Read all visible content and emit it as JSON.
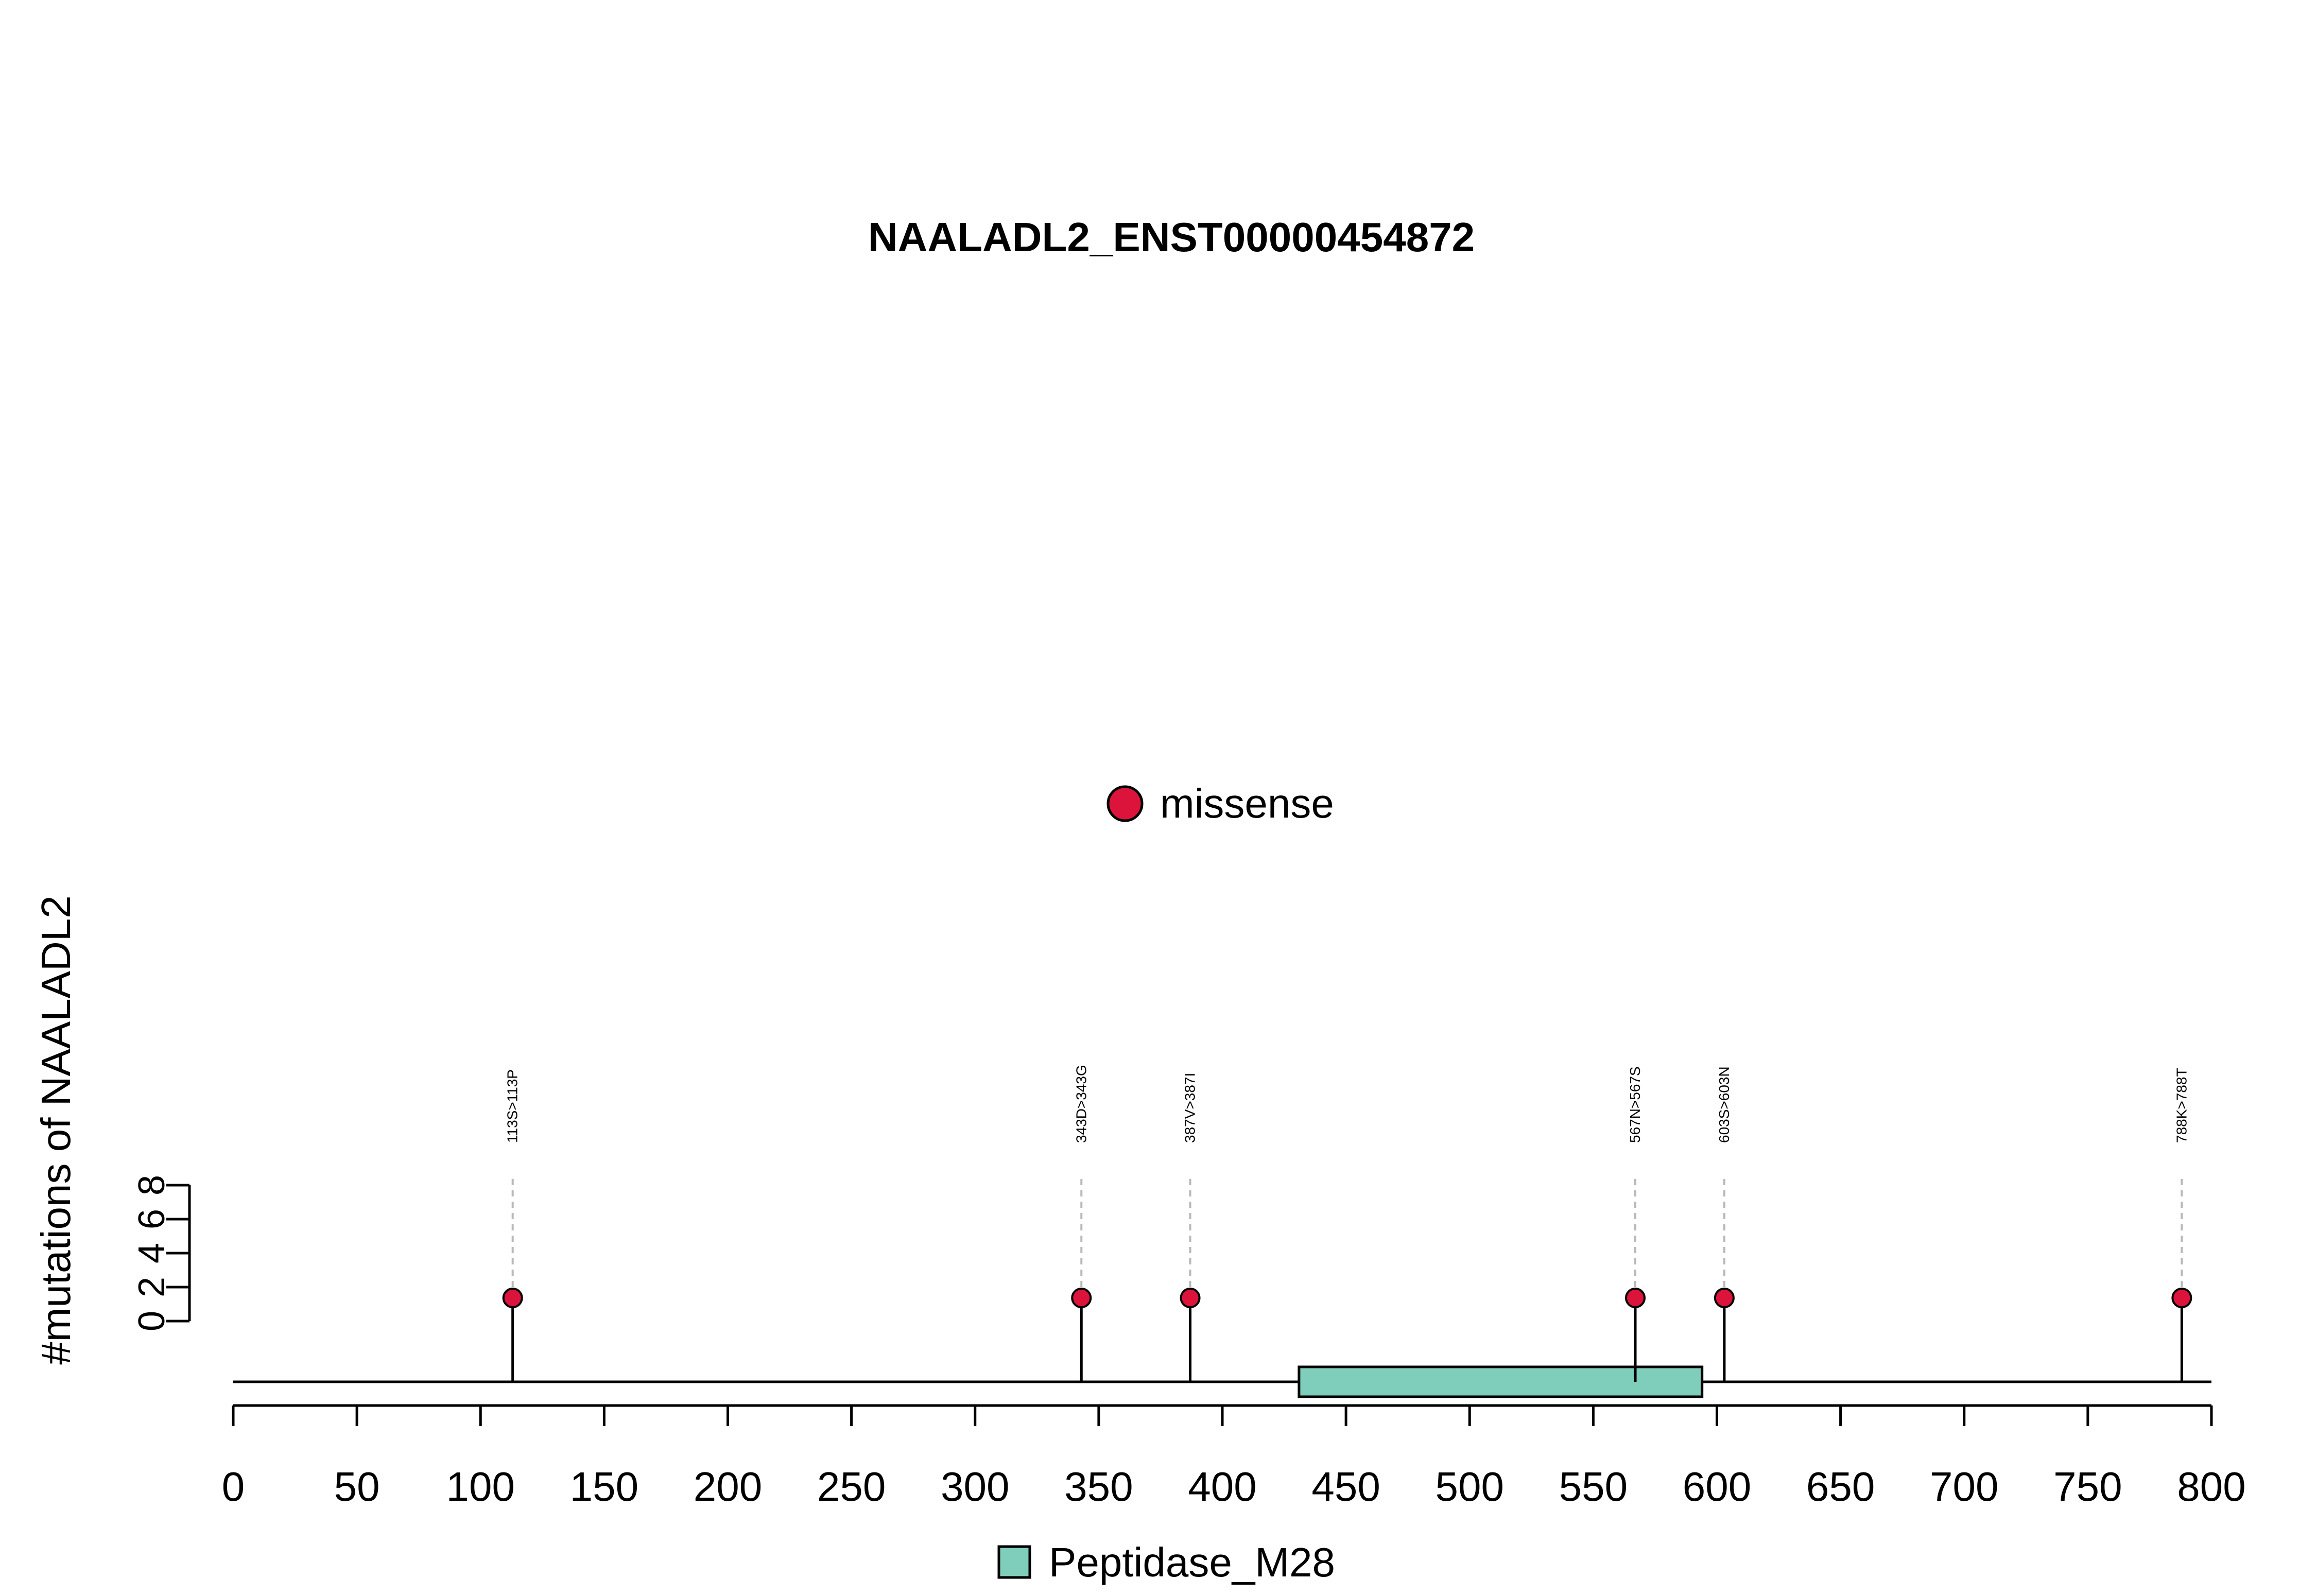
{
  "chart_data": {
    "type": "lollipop",
    "title": "NAALADL2_ENST00000454872",
    "ylabel": "#mutations of NAALADL2",
    "xlabel": "",
    "xlim": [
      0,
      800
    ],
    "x_ticks": [
      "0",
      "50",
      "100",
      "150",
      "200",
      "250",
      "300",
      "350",
      "400",
      "450",
      "500",
      "550",
      "600",
      "650",
      "700",
      "750",
      "800"
    ],
    "ylim": [
      0,
      8
    ],
    "y_ticks": [
      "0",
      "2",
      "4",
      "6",
      "8"
    ],
    "legend_top": {
      "label": "missense",
      "color": "#DC143C",
      "placement": "top-center"
    },
    "legend_bottom": {
      "label": "Peptidase_M28",
      "color": "#7FCDBB",
      "placement": "bottom-center"
    },
    "series": [
      {
        "name": "missense",
        "color": "#DC143C",
        "points": [
          {
            "position": 113,
            "count": 1,
            "label": "113S>113P"
          },
          {
            "position": 343,
            "count": 1,
            "label": "343D>343G"
          },
          {
            "position": 387,
            "count": 1,
            "label": "387V>387I"
          },
          {
            "position": 567,
            "count": 1,
            "label": "567N>567S"
          },
          {
            "position": 603,
            "count": 1,
            "label": "603S>603N"
          },
          {
            "position": 788,
            "count": 1,
            "label": "788K>788T"
          }
        ]
      }
    ],
    "domains": [
      {
        "name": "Peptidase_M28",
        "start": 431,
        "end": 594,
        "color": "#7FCDBB"
      }
    ]
  }
}
